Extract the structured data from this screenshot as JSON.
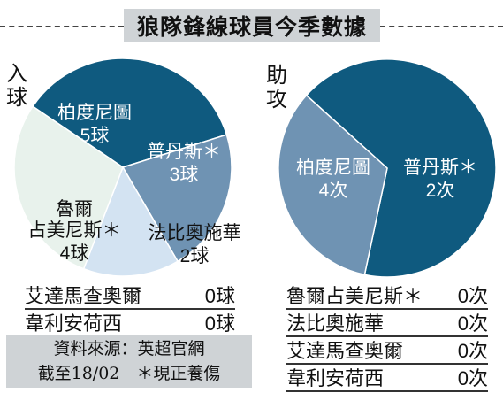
{
  "title": "狼隊鋒線球員今季數據",
  "goals_label": "入球",
  "assists_label": "助攻",
  "chart_data": [
    {
      "type": "pie",
      "label": "入球",
      "unit": "球",
      "slices": [
        {
          "name": "柏度尼圖",
          "value": 5,
          "value_text": "5球",
          "color": "#0f5a7f"
        },
        {
          "name": "普丹斯＊",
          "value": 3,
          "value_text": "3球",
          "color": "#6f93b3"
        },
        {
          "name": "法比奧施華",
          "value": 2,
          "value_text": "2球",
          "color": "#d3e3f2"
        },
        {
          "name": "魯爾占美尼斯＊",
          "value": 4,
          "value_text": "4球",
          "color": "#e8f2ec"
        }
      ]
    },
    {
      "type": "pie",
      "label": "助攻",
      "unit": "次",
      "slices": [
        {
          "name": "柏度尼圖",
          "value": 4,
          "value_text": "4次",
          "color": "#0f5a7f"
        },
        {
          "name": "普丹斯＊",
          "value": 2,
          "value_text": "2次",
          "color": "#6f93b3"
        }
      ]
    }
  ],
  "goals_table": [
    {
      "name": "艾達馬查奧爾",
      "value": "0球"
    },
    {
      "name": "韋利安荷西",
      "value": "0球"
    }
  ],
  "assists_table": [
    {
      "name": "魯爾占美尼斯＊",
      "value": "0次"
    },
    {
      "name": "法比奧施華",
      "value": "0次"
    },
    {
      "name": "艾達馬查奧爾",
      "value": "0次"
    },
    {
      "name": "韋利安荷西",
      "value": "0次"
    }
  ],
  "source": {
    "line1": "資料來源：英超官網",
    "line2": "截至18/02　＊現正養傷"
  }
}
